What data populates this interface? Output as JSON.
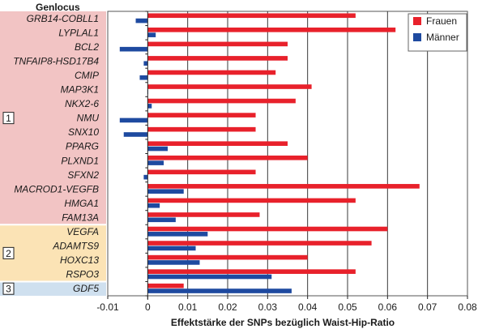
{
  "chart_data": {
    "type": "bar",
    "orientation": "horizontal",
    "category_header": "Genlocus",
    "xlabel": "Effektstärke der SNPs bezüglich Waist-Hip-Ratio",
    "xlim": [
      -0.01,
      0.08
    ],
    "xticks": [
      "-0.01",
      "0",
      "0.01",
      "0.02",
      "0.03",
      "0.04",
      "0.05",
      "0.06",
      "0.07",
      "0.08"
    ],
    "grid": "vertical",
    "legend_position": "top-right",
    "categories": [
      "GRB14-COBLL1",
      "LYPLAL1",
      "BCL2",
      "TNFAIP8-HSD17B4",
      "CMIP",
      "MAP3K1",
      "NKX2-6",
      "NMU",
      "SNX10",
      "PPARG",
      "PLXND1",
      "SFXN2",
      "MACROD1-VEGFB",
      "HMGA1",
      "FAM13A",
      "VEGFA",
      "ADAMTS9",
      "HOXC13",
      "RSPO3",
      "GDF5"
    ],
    "series": [
      {
        "name": "Frauen",
        "color": "#e8212b",
        "values": [
          0.052,
          0.062,
          0.035,
          0.035,
          0.032,
          0.041,
          0.037,
          0.027,
          0.027,
          0.035,
          0.04,
          0.027,
          0.068,
          0.052,
          0.028,
          0.06,
          0.056,
          0.04,
          0.052,
          0.009
        ]
      },
      {
        "name": "Männer",
        "color": "#1e4aa0",
        "values": [
          -0.003,
          0.002,
          -0.007,
          -0.001,
          -0.002,
          0.0,
          0.001,
          -0.007,
          -0.006,
          0.005,
          0.004,
          -0.001,
          0.009,
          0.003,
          0.007,
          0.015,
          0.012,
          0.013,
          0.031,
          0.036
        ]
      }
    ],
    "groups": [
      {
        "label": "1",
        "start": 0,
        "end": 14,
        "color": "#f2c4c4"
      },
      {
        "label": "2",
        "start": 15,
        "end": 18,
        "color": "#fbe3b5"
      },
      {
        "label": "3",
        "start": 19,
        "end": 19,
        "color": "#cfe0ef"
      }
    ]
  }
}
